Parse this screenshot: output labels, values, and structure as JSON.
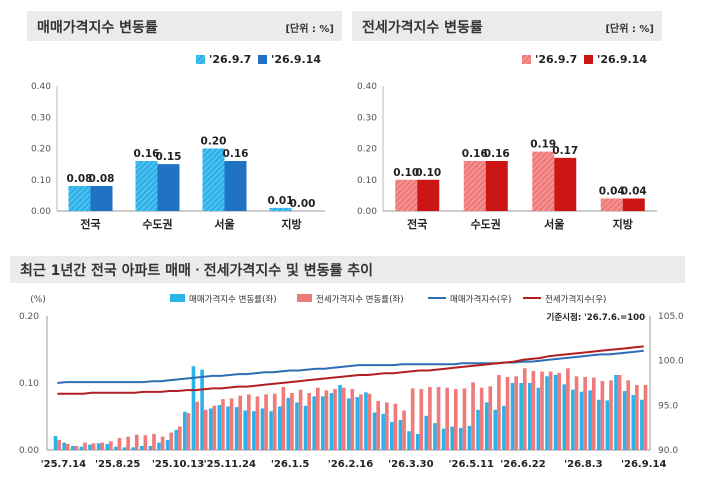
{
  "colors": {
    "sale_last": "#2cb2e8",
    "sale_this": "#1f72c4",
    "jeonse_last": "#f07a7a",
    "jeonse_this": "#cc1515",
    "sale_index": "#2f6db5",
    "jeonse_index": "#b31e1e"
  },
  "panels": {
    "sale": {
      "title": "매매가격지수 변동률",
      "unit": "[단위 : %]"
    },
    "jeonse": {
      "title": "전세가격지수 변동률",
      "unit": "[단위 : %]"
    },
    "trend": {
      "title": "최근 1년간 전국 아파트 매매ㆍ전세가격지수 및 변동률 추이"
    }
  },
  "chart_data": [
    {
      "type": "bar",
      "categories": [
        "전국",
        "수도권",
        "서울",
        "지방"
      ],
      "series": [
        {
          "name": "'26.9.7",
          "values": [
            0.08,
            0.16,
            0.2,
            0.01
          ]
        },
        {
          "name": "'26.9.14",
          "values": [
            0.08,
            0.15,
            0.16,
            0.0
          ]
        }
      ],
      "value_labels": [
        [
          "0.08",
          "0.16",
          "0.20",
          "0.01"
        ],
        [
          "0.08",
          "0.15",
          "0.16",
          "0.00"
        ]
      ],
      "ylim": [
        0,
        0.4
      ],
      "yticks": [
        "0.00",
        "0.10",
        "0.20",
        "0.30",
        "0.40"
      ],
      "legend": "top-right",
      "grid": false
    },
    {
      "type": "bar",
      "categories": [
        "전국",
        "수도권",
        "서울",
        "지방"
      ],
      "series": [
        {
          "name": "'26.9.7",
          "values": [
            0.1,
            0.16,
            0.19,
            0.04
          ]
        },
        {
          "name": "'26.9.14",
          "values": [
            0.1,
            0.16,
            0.17,
            0.04
          ]
        }
      ],
      "value_labels": [
        [
          "0.10",
          "0.16",
          "0.19",
          "0.04"
        ],
        [
          "0.10",
          "0.16",
          "0.17",
          "0.04"
        ]
      ],
      "ylim": [
        0,
        0.4
      ],
      "yticks": [
        "0.00",
        "0.10",
        "0.20",
        "0.30",
        "0.40"
      ],
      "legend": "top-right",
      "grid": false
    },
    {
      "type": "bar",
      "left_axis_title": "(%)",
      "annotation": "기준시점: '26.7.6.=100",
      "ylim_left": [
        0,
        0.2
      ],
      "yticks_left": [
        "0.00",
        "0.10",
        "0.20"
      ],
      "ylim_right": [
        90,
        105
      ],
      "yticks_right": [
        "90.0",
        "95.0",
        "100.0",
        "105.0"
      ],
      "x_tick_labels": [
        "'25.7.14",
        "'25.8.25",
        "'25.10.13",
        "'25.11.24",
        "'26.1.5",
        "'26.2.16",
        "'26.3.30",
        "'26.5.11",
        "'26.6.22",
        "'26.8.3",
        "'26.9.14"
      ],
      "legend": "top",
      "series": [
        {
          "name": "매매가격지수 변동률(좌)",
          "kind": "bar",
          "axis": "left",
          "values": [
            0.021,
            0.011,
            0.006,
            0.005,
            0.008,
            0.01,
            0.009,
            0.005,
            0.004,
            0.004,
            0.006,
            0.006,
            0.011,
            0.015,
            0.03,
            0.057,
            0.125,
            0.12,
            0.062,
            0.067,
            0.065,
            0.064,
            0.059,
            0.058,
            0.062,
            0.058,
            0.065,
            0.078,
            0.071,
            0.066,
            0.08,
            0.08,
            0.085,
            0.097,
            0.077,
            0.079,
            0.086,
            0.056,
            0.054,
            0.042,
            0.045,
            0.028,
            0.024,
            0.051,
            0.04,
            0.032,
            0.035,
            0.033,
            0.036,
            0.06,
            0.071,
            0.06,
            0.066,
            0.1,
            0.1,
            0.1,
            0.093,
            0.11,
            0.112,
            0.098,
            0.09,
            0.087,
            0.089,
            0.075,
            0.074,
            0.112,
            0.088,
            0.082,
            0.075
          ]
        },
        {
          "name": "전세가격지수 변동률(좌)",
          "kind": "bar",
          "axis": "left",
          "values": [
            0.015,
            0.009,
            0.006,
            0.011,
            0.01,
            0.011,
            0.013,
            0.018,
            0.02,
            0.023,
            0.022,
            0.024,
            0.02,
            0.026,
            0.035,
            0.055,
            0.072,
            0.06,
            0.066,
            0.076,
            0.077,
            0.081,
            0.083,
            0.08,
            0.083,
            0.084,
            0.094,
            0.085,
            0.09,
            0.085,
            0.093,
            0.089,
            0.091,
            0.093,
            0.091,
            0.083,
            0.084,
            0.073,
            0.071,
            0.069,
            0.059,
            0.092,
            0.091,
            0.094,
            0.094,
            0.093,
            0.091,
            0.092,
            0.101,
            0.093,
            0.095,
            0.112,
            0.109,
            0.11,
            0.122,
            0.118,
            0.117,
            0.117,
            0.115,
            0.122,
            0.11,
            0.109,
            0.108,
            0.103,
            0.104,
            0.112,
            0.104,
            0.097,
            0.097
          ]
        },
        {
          "name": "매매가격지수(우)",
          "kind": "line",
          "axis": "right",
          "values": [
            97.5,
            97.6,
            97.6,
            97.6,
            97.6,
            97.6,
            97.6,
            97.6,
            97.6,
            97.6,
            97.6,
            97.7,
            97.7,
            97.8,
            97.9,
            98.0,
            98.1,
            98.2,
            98.3,
            98.3,
            98.4,
            98.5,
            98.5,
            98.6,
            98.7,
            98.7,
            98.8,
            98.9,
            98.9,
            99.0,
            99.1,
            99.1,
            99.2,
            99.3,
            99.4,
            99.5,
            99.5,
            99.5,
            99.5,
            99.5,
            99.6,
            99.6,
            99.6,
            99.6,
            99.6,
            99.6,
            99.6,
            99.7,
            99.7,
            99.7,
            99.7,
            99.7,
            99.8,
            99.8,
            99.9,
            99.9,
            100.0,
            100.1,
            100.2,
            100.3,
            100.4,
            100.5,
            100.6,
            100.7,
            100.7,
            100.8,
            100.9,
            101.0,
            101.1
          ]
        },
        {
          "name": "전세가격지수(우)",
          "kind": "line",
          "axis": "right",
          "values": [
            96.3,
            96.3,
            96.3,
            96.3,
            96.4,
            96.4,
            96.4,
            96.4,
            96.4,
            96.4,
            96.5,
            96.5,
            96.5,
            96.6,
            96.6,
            96.7,
            96.7,
            96.8,
            96.9,
            96.9,
            97.0,
            97.1,
            97.1,
            97.2,
            97.3,
            97.4,
            97.5,
            97.6,
            97.7,
            97.8,
            97.9,
            98.0,
            98.1,
            98.2,
            98.3,
            98.4,
            98.4,
            98.5,
            98.6,
            98.6,
            98.7,
            98.8,
            98.9,
            98.9,
            99.0,
            99.1,
            99.2,
            99.3,
            99.4,
            99.5,
            99.6,
            99.7,
            99.8,
            99.9,
            100.1,
            100.2,
            100.3,
            100.5,
            100.6,
            100.7,
            100.8,
            100.9,
            101.0,
            101.1,
            101.2,
            101.3,
            101.4,
            101.5,
            101.6
          ]
        }
      ]
    }
  ]
}
